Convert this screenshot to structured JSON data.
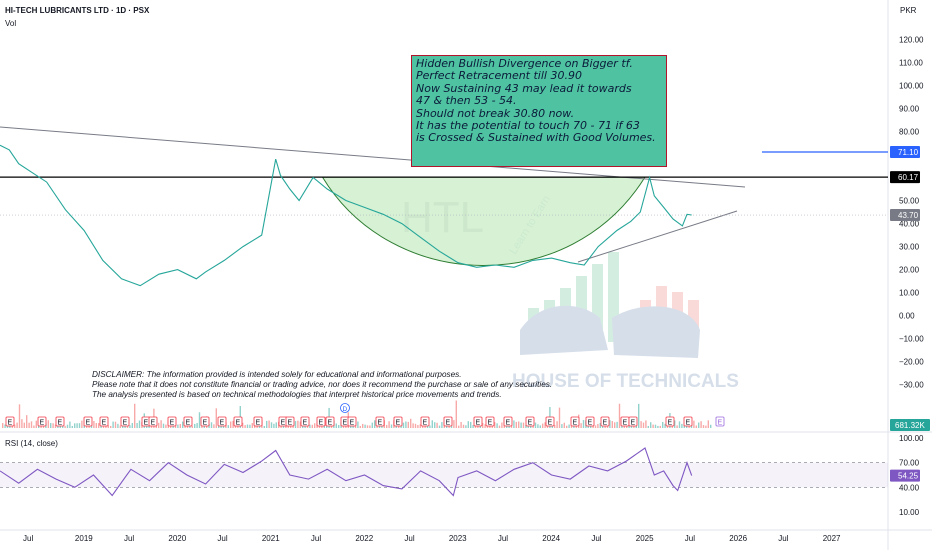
{
  "header": {
    "symbol_line": "HI-TECH LUBRICANTS LTD · 1D · PSX",
    "volume_label": "Vol",
    "rsi_label": "RSI (14, close)",
    "currency": "PKR"
  },
  "annotation": {
    "lines": [
      "Hidden Bullish Divergence on Bigger tf.",
      "Perfect Retracement till 30.90",
      "Now Sustaining 43 may lead it towards",
      "47 & then 53 - 54.",
      "Should not break 30.80 now.",
      "It has the potential to touch 70 - 71 if 63",
      "is Crossed & Sustained with Good Volumes."
    ]
  },
  "disclaimer": {
    "lines": [
      "DISCLAIMER: The information provided is intended solely for educational and informational purposes.",
      "Please note that it does not constitute financial or trading advice, nor does it recommend the purchase or sale of any securities.",
      "The analysis presented is based on technical methodologies that interpret historical price movements and trends."
    ]
  },
  "watermark": {
    "ticker": "HTL",
    "brand": "HOUSE OF TECHNICALS",
    "tagline": "Learn to Earn"
  },
  "chart_data": [
    {
      "type": "line",
      "name": "price",
      "x_unit": "year",
      "xlim": [
        2018.1,
        2027.6
      ],
      "ylim": [
        -38,
        125
      ],
      "y_ticks": [
        120,
        110,
        100,
        90,
        80,
        70,
        60,
        50,
        40,
        30,
        20,
        10,
        0,
        -10,
        -20,
        -30
      ],
      "y_tick_labels": [
        "120.00",
        "110.00",
        "100.00",
        "90.00",
        "80.00",
        "70.00",
        "60.00",
        "50.00",
        "40.00",
        "30.00",
        "20.00",
        "10.00",
        "0.00",
        "−10.00",
        "−20.00",
        "−30.00"
      ],
      "x_ticks": [
        {
          "x": 2018.42,
          "label": "Jul"
        },
        {
          "x": 2019.0,
          "label": "2019"
        },
        {
          "x": 2019.5,
          "label": "Jul"
        },
        {
          "x": 2020.0,
          "label": "2020"
        },
        {
          "x": 2020.5,
          "label": "Jul"
        },
        {
          "x": 2021.0,
          "label": "2021"
        },
        {
          "x": 2021.5,
          "label": "Jul"
        },
        {
          "x": 2022.0,
          "label": "2022"
        },
        {
          "x": 2022.5,
          "label": "Jul"
        },
        {
          "x": 2023.0,
          "label": "2023"
        },
        {
          "x": 2023.5,
          "label": "Jul"
        },
        {
          "x": 2024.0,
          "label": "2024"
        },
        {
          "x": 2024.5,
          "label": "Jul"
        },
        {
          "x": 2025.0,
          "label": "2025"
        },
        {
          "x": 2025.5,
          "label": "Jul"
        },
        {
          "x": 2026.0,
          "label": "2026"
        },
        {
          "x": 2026.5,
          "label": "Jul"
        },
        {
          "x": 2027.0,
          "label": "2027"
        }
      ],
      "x": [
        2018.1,
        2018.2,
        2018.3,
        2018.45,
        2018.6,
        2018.8,
        2019.0,
        2019.2,
        2019.4,
        2019.6,
        2019.8,
        2020.0,
        2020.2,
        2020.3,
        2020.5,
        2020.7,
        2020.9,
        2021.05,
        2021.1,
        2021.2,
        2021.3,
        2021.45,
        2021.6,
        2021.8,
        2022.0,
        2022.2,
        2022.4,
        2022.6,
        2022.8,
        2023.0,
        2023.2,
        2023.4,
        2023.6,
        2023.8,
        2024.0,
        2024.2,
        2024.35,
        2024.5,
        2024.7,
        2024.85,
        2024.95,
        2025.05,
        2025.1,
        2025.2,
        2025.3,
        2025.4,
        2025.45,
        2025.5
      ],
      "y": [
        74,
        72,
        66,
        62,
        58,
        46,
        37,
        24,
        16,
        13,
        18,
        20,
        16,
        19,
        24,
        30,
        35,
        68,
        61,
        55,
        50,
        60,
        55,
        50,
        47,
        44,
        40,
        34,
        28,
        23,
        21,
        22,
        21,
        24,
        25,
        23,
        22,
        30,
        37,
        41,
        45,
        60,
        52,
        47,
        42,
        39,
        44,
        43.7
      ],
      "current_price": "43.70",
      "price_labels": [
        {
          "value": "71.10",
          "y": 71.1,
          "color": "#2962ff"
        },
        {
          "value": "60.17",
          "y": 60.17,
          "color": "#000000"
        },
        {
          "value": "43.70",
          "y": 43.7,
          "color": "#787b86"
        }
      ],
      "levels": [
        {
          "name": "resistance",
          "value": 60.17,
          "color": "#000000"
        },
        {
          "name": "target",
          "value": 71.1,
          "color": "#2962ff"
        }
      ]
    },
    {
      "type": "bar",
      "name": "Vol",
      "volume_label": "681.32K"
    },
    {
      "type": "line",
      "name": "RSI (14, close)",
      "ylim": [
        0,
        110
      ],
      "y_ticks": [
        100,
        70,
        40,
        10
      ],
      "y_tick_labels": [
        "100.00",
        "70.00",
        "40.00",
        "10.00"
      ],
      "band": [
        40,
        70
      ],
      "current_value": "54.25",
      "x": [
        2018.1,
        2018.3,
        2018.5,
        2018.7,
        2018.9,
        2019.1,
        2019.3,
        2019.5,
        2019.7,
        2019.9,
        2020.1,
        2020.3,
        2020.5,
        2020.7,
        2020.9,
        2021.05,
        2021.2,
        2021.4,
        2021.6,
        2021.8,
        2022.0,
        2022.2,
        2022.4,
        2022.6,
        2022.8,
        2022.95,
        2023.0,
        2023.2,
        2023.4,
        2023.6,
        2023.8,
        2024.0,
        2024.2,
        2024.4,
        2024.6,
        2024.8,
        2025.0,
        2025.1,
        2025.2,
        2025.3,
        2025.35,
        2025.45,
        2025.5
      ],
      "y": [
        60,
        45,
        62,
        50,
        40,
        55,
        30,
        62,
        48,
        70,
        55,
        44,
        68,
        58,
        72,
        85,
        55,
        50,
        62,
        48,
        55,
        42,
        38,
        60,
        48,
        30,
        52,
        60,
        48,
        62,
        70,
        55,
        50,
        66,
        60,
        72,
        88,
        55,
        60,
        42,
        36,
        70,
        54.25
      ]
    }
  ],
  "earnings_markers": {
    "label": "E",
    "dividend_label": "D"
  }
}
